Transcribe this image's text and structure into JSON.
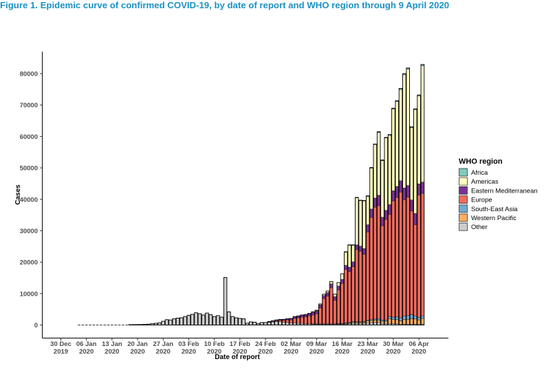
{
  "figure_title": "Figure 1. Epidemic curve of confirmed COVID-19, by date of report and WHO region through 9 April 2020",
  "chart_data": {
    "type": "bar",
    "stacked": true,
    "title": "Figure 1. Epidemic curve of confirmed COVID-19, by date of report and WHO region through 9 April 2020",
    "xlabel": "Date of report",
    "ylabel": "Cases",
    "xlim": [
      "2019-12-30",
      "2020-04-09"
    ],
    "ylim": [
      0,
      85000
    ],
    "yticks": [
      0,
      10000,
      20000,
      30000,
      40000,
      50000,
      60000,
      70000,
      80000
    ],
    "xticks": [
      {
        "date": "2019-12-30",
        "line1": "30 Dec",
        "line2": "2019"
      },
      {
        "date": "2020-01-06",
        "line1": "06 Jan",
        "line2": "2020"
      },
      {
        "date": "2020-01-13",
        "line1": "13 Jan",
        "line2": "2020"
      },
      {
        "date": "2020-01-20",
        "line1": "20 Jan",
        "line2": "2020"
      },
      {
        "date": "2020-01-27",
        "line1": "27 Jan",
        "line2": "2020"
      },
      {
        "date": "2020-02-03",
        "line1": "03 Feb",
        "line2": "2020"
      },
      {
        "date": "2020-02-10",
        "line1": "10 Feb",
        "line2": "2020"
      },
      {
        "date": "2020-02-17",
        "line1": "17 Feb",
        "line2": "2020"
      },
      {
        "date": "2020-02-24",
        "line1": "24 Feb",
        "line2": "2020"
      },
      {
        "date": "2020-03-02",
        "line1": "02 Mar",
        "line2": "2020"
      },
      {
        "date": "2020-03-09",
        "line1": "09 Mar",
        "line2": "2020"
      },
      {
        "date": "2020-03-16",
        "line1": "16 Mar",
        "line2": "2020"
      },
      {
        "date": "2020-03-23",
        "line1": "23 Mar",
        "line2": "2020"
      },
      {
        "date": "2020-03-30",
        "line1": "30 Mar",
        "line2": "2020"
      },
      {
        "date": "2020-04-06",
        "line1": "06 Apr",
        "line2": "2020"
      }
    ],
    "grid": false,
    "legend": {
      "title": "WHO region",
      "position": "right"
    },
    "series": [
      {
        "name": "Africa",
        "color": "#7fcdbb"
      },
      {
        "name": "Americas",
        "color": "#ffffbf"
      },
      {
        "name": "Eastern Mediterranean",
        "color": "#7b3294"
      },
      {
        "name": "Europe",
        "color": "#f16b5e"
      },
      {
        "name": "South-East Asia",
        "color": "#74a9cf"
      },
      {
        "name": "Western Pacific",
        "color": "#fdae61"
      },
      {
        "name": "Other",
        "color": "#cccccc"
      }
    ],
    "start_date": "2020-01-04",
    "daily": [
      [
        0,
        0,
        0,
        0,
        0,
        0,
        0
      ],
      [
        0,
        0,
        0,
        0,
        0,
        0,
        0
      ],
      [
        0,
        0,
        0,
        0,
        0,
        0,
        0
      ],
      [
        0,
        0,
        0,
        0,
        0,
        0,
        0
      ],
      [
        0,
        0,
        0,
        0,
        0,
        0,
        0
      ],
      [
        0,
        0,
        0,
        0,
        0,
        0,
        0
      ],
      [
        0,
        0,
        0,
        0,
        0,
        0,
        0
      ],
      [
        0,
        0,
        0,
        0,
        0,
        0,
        0
      ],
      [
        0,
        0,
        0,
        0,
        0,
        0,
        0
      ],
      [
        0,
        0,
        0,
        0,
        0,
        0,
        0
      ],
      [
        0,
        0,
        0,
        0,
        0,
        0,
        0
      ],
      [
        0,
        0,
        0,
        0,
        0,
        0,
        0
      ],
      [
        0,
        0,
        0,
        0,
        0,
        0,
        0
      ],
      [
        0,
        0,
        0,
        0,
        0,
        0,
        0
      ],
      [
        0,
        0,
        0,
        0,
        0,
        0,
        100
      ],
      [
        0,
        0,
        0,
        0,
        0,
        0,
        130
      ],
      [
        0,
        0,
        0,
        0,
        0,
        0,
        150
      ],
      [
        0,
        0,
        0,
        0,
        0,
        0,
        160
      ],
      [
        0,
        0,
        0,
        0,
        0,
        0,
        200
      ],
      [
        0,
        0,
        0,
        0,
        0,
        0,
        280
      ],
      [
        0,
        0,
        0,
        0,
        0,
        0,
        400
      ],
      [
        0,
        0,
        0,
        0,
        0,
        0,
        550
      ],
      [
        0,
        0,
        0,
        0,
        0,
        0,
        700
      ],
      [
        0,
        0,
        0,
        0,
        0,
        0,
        1200
      ],
      [
        0,
        0,
        0,
        0,
        0,
        0,
        1700
      ],
      [
        0,
        0,
        0,
        0,
        0,
        0,
        1600
      ],
      [
        0,
        0,
        0,
        0,
        0,
        0,
        2000
      ],
      [
        0,
        0,
        0,
        0,
        0,
        0,
        2200
      ],
      [
        0,
        0,
        0,
        0,
        0,
        0,
        2300
      ],
      [
        0,
        0,
        0,
        0,
        0,
        0,
        2700
      ],
      [
        0,
        0,
        0,
        0,
        0,
        0,
        3100
      ],
      [
        0,
        0,
        0,
        0,
        0,
        0,
        3400
      ],
      [
        0,
        0,
        0,
        0,
        0,
        0,
        3900
      ],
      [
        0,
        0,
        0,
        0,
        0,
        0,
        3600
      ],
      [
        0,
        0,
        0,
        0,
        0,
        0,
        3200
      ],
      [
        0,
        0,
        0,
        0,
        0,
        0,
        3800
      ],
      [
        0,
        0,
        0,
        0,
        0,
        0,
        3300
      ],
      [
        0,
        0,
        0,
        0,
        0,
        0,
        2700
      ],
      [
        0,
        0,
        0,
        0,
        0,
        0,
        3000
      ],
      [
        0,
        0,
        0,
        0,
        0,
        0,
        2500
      ],
      [
        0,
        0,
        0,
        0,
        0,
        0,
        15100
      ],
      [
        0,
        0,
        0,
        0,
        0,
        0,
        4200
      ],
      [
        0,
        0,
        0,
        0,
        0,
        0,
        2700
      ],
      [
        0,
        0,
        0,
        0,
        0,
        0,
        2300
      ],
      [
        0,
        0,
        0,
        0,
        0,
        0,
        2100
      ],
      [
        0,
        0,
        0,
        0,
        0,
        0,
        2000
      ],
      [
        0,
        0,
        0,
        0,
        0,
        0,
        600
      ],
      [
        0,
        0,
        0,
        0,
        0,
        0,
        1000
      ],
      [
        0,
        0,
        0,
        0,
        0,
        0,
        900
      ],
      [
        0,
        0,
        0,
        0,
        0,
        0,
        500
      ],
      [
        0,
        0,
        0,
        0,
        0,
        0,
        800
      ],
      [
        0,
        0,
        0,
        0,
        0,
        0,
        800
      ],
      [
        0,
        0,
        100,
        100,
        0,
        0,
        900
      ],
      [
        0,
        0,
        150,
        200,
        0,
        0,
        1000
      ],
      [
        0,
        0,
        200,
        300,
        0,
        0,
        1100
      ],
      [
        0,
        0,
        250,
        400,
        0,
        0,
        1100
      ],
      [
        0,
        0,
        300,
        600,
        0,
        0,
        900
      ],
      [
        0,
        0,
        400,
        800,
        0,
        0,
        800
      ],
      [
        0,
        0,
        500,
        1000,
        0,
        0,
        600
      ],
      [
        0,
        0,
        600,
        1500,
        0,
        0,
        600
      ],
      [
        0,
        0,
        600,
        1800,
        0,
        0,
        500
      ],
      [
        0,
        0,
        700,
        2000,
        0,
        0,
        500
      ],
      [
        0,
        0,
        750,
        2200,
        0,
        0,
        400
      ],
      [
        0,
        0,
        800,
        2500,
        0,
        0,
        400
      ],
      [
        0,
        100,
        900,
        2800,
        100,
        0,
        300
      ],
      [
        0,
        200,
        900,
        3200,
        100,
        0,
        300
      ],
      [
        0,
        300,
        1000,
        5000,
        100,
        0,
        300
      ],
      [
        0,
        400,
        1000,
        8000,
        100,
        0,
        300
      ],
      [
        0,
        500,
        1100,
        8800,
        100,
        0,
        300
      ],
      [
        0,
        700,
        1200,
        11500,
        100,
        0,
        300
      ],
      [
        0,
        800,
        1100,
        7500,
        100,
        0,
        300
      ],
      [
        0,
        1100,
        1200,
        10700,
        100,
        100,
        300
      ],
      [
        0,
        1800,
        1300,
        12700,
        100,
        100,
        300
      ],
      [
        100,
        4200,
        1300,
        17000,
        200,
        200,
        300
      ],
      [
        100,
        7000,
        1400,
        16200,
        200,
        200,
        400
      ],
      [
        100,
        5300,
        1500,
        17500,
        300,
        300,
        500
      ],
      [
        100,
        15000,
        1500,
        23000,
        200,
        300,
        500
      ],
      [
        100,
        14500,
        1600,
        22500,
        200,
        300,
        500
      ],
      [
        100,
        15200,
        1800,
        21400,
        300,
        300,
        500
      ],
      [
        200,
        9000,
        2300,
        28000,
        300,
        600,
        700
      ],
      [
        200,
        13000,
        2700,
        32500,
        300,
        700,
        700
      ],
      [
        200,
        17000,
        2900,
        35600,
        400,
        700,
        800
      ],
      [
        200,
        20000,
        3300,
        36000,
        500,
        700,
        800
      ],
      [
        200,
        18000,
        2700,
        30000,
        400,
        700,
        500
      ],
      [
        200,
        23000,
        2900,
        32000,
        400,
        700,
        500
      ],
      [
        300,
        22000,
        3100,
        32500,
        700,
        1500,
        500
      ],
      [
        300,
        26000,
        3200,
        37000,
        800,
        1300,
        400
      ],
      [
        300,
        27000,
        3500,
        38000,
        900,
        1300,
        400
      ],
      [
        400,
        29000,
        3600,
        40000,
        1000,
        1000,
        300
      ],
      [
        400,
        36000,
        3700,
        37000,
        1100,
        1500,
        300
      ],
      [
        400,
        37000,
        3700,
        37700,
        1200,
        1500,
        300
      ],
      [
        300,
        23000,
        3500,
        33000,
        1300,
        1700,
        300
      ],
      [
        300,
        33000,
        3600,
        29000,
        900,
        1700,
        300
      ],
      [
        300,
        28000,
        3500,
        39000,
        800,
        1300,
        300
      ],
      [
        400,
        37000,
        3600,
        39000,
        800,
        1800,
        300
      ]
    ]
  }
}
